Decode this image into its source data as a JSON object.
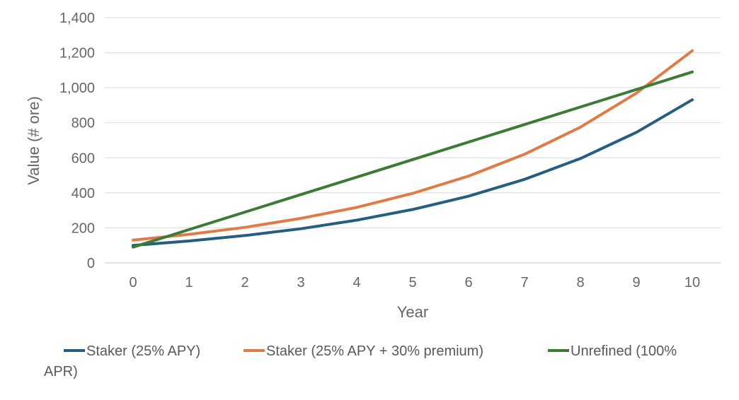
{
  "chart_data": {
    "type": "line",
    "title": "",
    "xlabel": "Year",
    "ylabel": "Value (# ore)",
    "categories": [
      "0",
      "1",
      "2",
      "3",
      "4",
      "5",
      "6",
      "7",
      "8",
      "9",
      "10"
    ],
    "ylim": [
      0,
      1400
    ],
    "yticks": [
      "0",
      "200",
      "400",
      "600",
      "800",
      "1,000",
      "1,200",
      "1,400"
    ],
    "grid": true,
    "legend_position": "bottom",
    "series": [
      {
        "name": "Staker (25% APY)",
        "color": "#255E7E",
        "values": [
          100,
          125,
          156,
          195,
          244,
          305,
          381,
          477,
          596,
          745,
          931
        ]
      },
      {
        "name": "Staker (25% APY + 30% premium)",
        "color": "#E07B47",
        "values": [
          130,
          163,
          203,
          254,
          317,
          397,
          496,
          620,
          775,
          969,
          1211
        ]
      },
      {
        "name": "Unrefined (100% APR)",
        "color": "#3D7A35",
        "values": [
          90,
          190,
          290,
          390,
          490,
          590,
          690,
          790,
          890,
          990,
          1090
        ]
      }
    ],
    "legend_line1": [
      "Staker (25% APY)",
      "Staker (25% APY + 30% premium)",
      "Unrefined (100%"
    ],
    "legend_line2": "APR)"
  }
}
